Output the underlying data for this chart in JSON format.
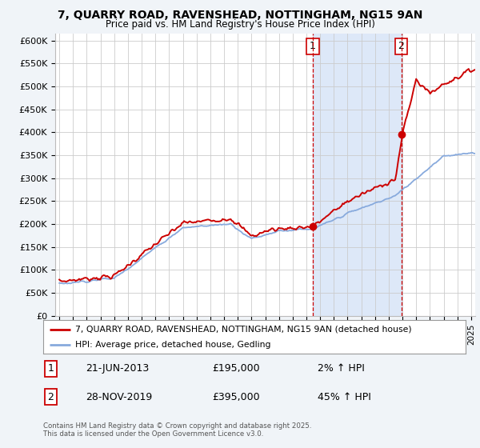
{
  "title": "7, QUARRY ROAD, RAVENSHEAD, NOTTINGHAM, NG15 9AN",
  "subtitle": "Price paid vs. HM Land Registry's House Price Index (HPI)",
  "ylabel_ticks": [
    "£0",
    "£50K",
    "£100K",
    "£150K",
    "£200K",
    "£250K",
    "£300K",
    "£350K",
    "£400K",
    "£450K",
    "£500K",
    "£550K",
    "£600K"
  ],
  "ytick_values": [
    0,
    50000,
    100000,
    150000,
    200000,
    250000,
    300000,
    350000,
    400000,
    450000,
    500000,
    550000,
    600000
  ],
  "ylim": [
    0,
    615000
  ],
  "xlim_start": 1994.7,
  "xlim_end": 2025.3,
  "background_color": "#f0f4ff",
  "plot_bg_color": "#ffffff",
  "grid_color": "#cccccc",
  "red_line_color": "#cc0000",
  "blue_line_color": "#88aadd",
  "shade_color": "#dde8f8",
  "sale1_x": 2013.47,
  "sale1_y": 195000,
  "sale2_x": 2019.91,
  "sale2_y": 395000,
  "legend_line1": "7, QUARRY ROAD, RAVENSHEAD, NOTTINGHAM, NG15 9AN (detached house)",
  "legend_line2": "HPI: Average price, detached house, Gedling",
  "footer": "Contains HM Land Registry data © Crown copyright and database right 2025.\nThis data is licensed under the Open Government Licence v3.0.",
  "xtick_years": [
    1995,
    1996,
    1997,
    1998,
    1999,
    2000,
    2001,
    2002,
    2003,
    2004,
    2005,
    2006,
    2007,
    2008,
    2009,
    2010,
    2011,
    2012,
    2013,
    2014,
    2015,
    2016,
    2017,
    2018,
    2019,
    2020,
    2021,
    2022,
    2023,
    2024,
    2025
  ]
}
